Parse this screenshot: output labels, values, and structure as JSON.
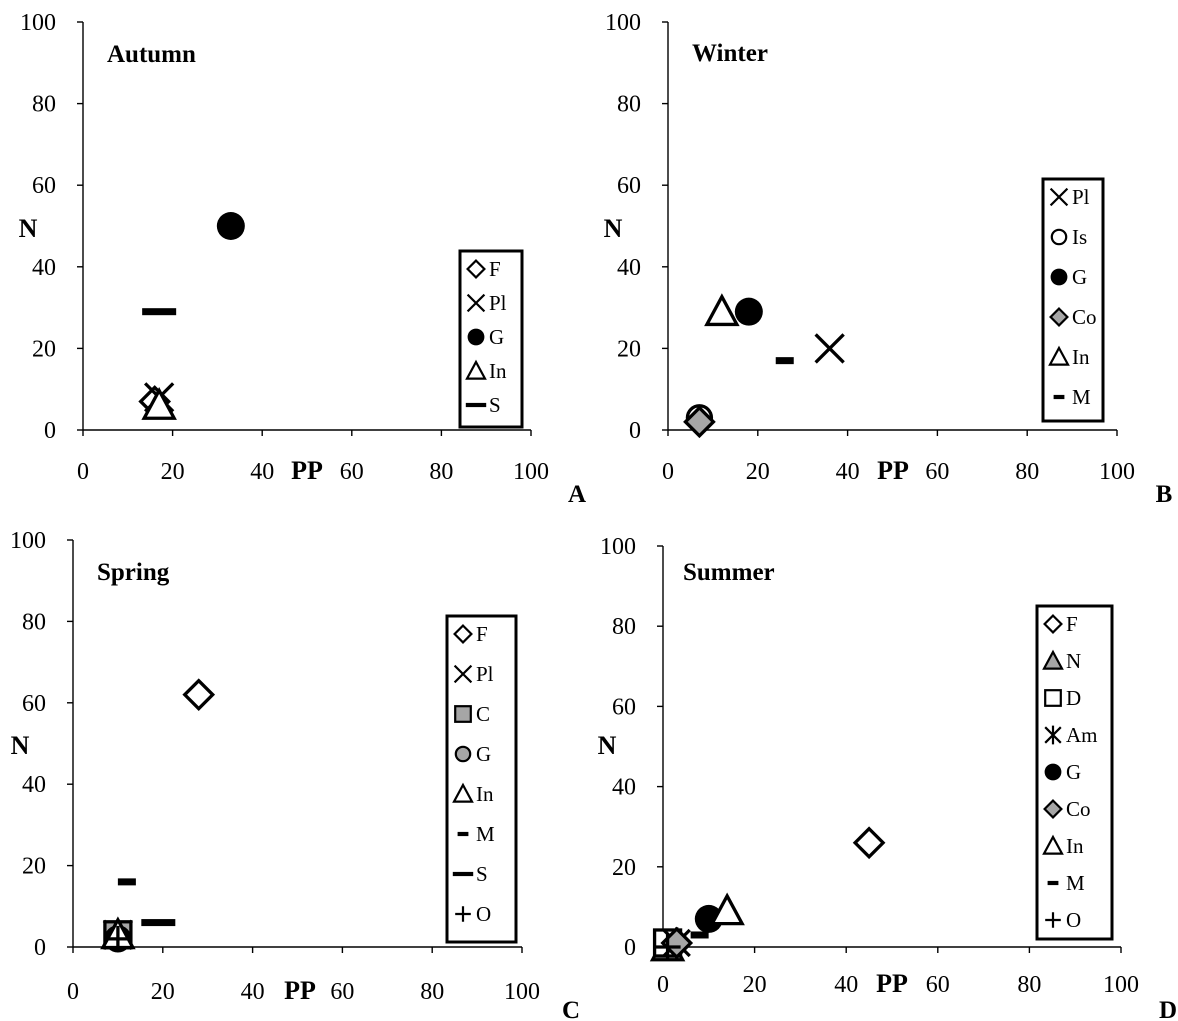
{
  "chart_data": [
    {
      "panel_id": "A",
      "type": "scatter",
      "title": "Autumn",
      "xlabel": "PP",
      "ylabel": "N",
      "xlim": [
        0,
        100
      ],
      "ylim": [
        0,
        100
      ],
      "xticks": [
        "0",
        "20",
        "40",
        "60",
        "80",
        "100"
      ],
      "yticks": [
        "0",
        "20",
        "40",
        "60",
        "80",
        "100"
      ],
      "grid": false,
      "legend_position": "lower-right",
      "series": [
        {
          "name": "F",
          "marker": "diamond-open",
          "color": "#000000",
          "x": 16,
          "y": 7
        },
        {
          "name": "Pl",
          "marker": "x",
          "color": "#000000",
          "x": 17,
          "y": 8
        },
        {
          "name": "G",
          "marker": "circle-filled",
          "color": "#000000",
          "x": 33,
          "y": 50
        },
        {
          "name": "In",
          "marker": "triangle-open",
          "color": "#000000",
          "x": 17,
          "y": 6
        },
        {
          "name": "S",
          "marker": "dash-long",
          "color": "#000000",
          "x": 17,
          "y": 29
        }
      ]
    },
    {
      "panel_id": "B",
      "type": "scatter",
      "title": "Winter",
      "xlabel": "PP",
      "ylabel": "N",
      "xlim": [
        0,
        100
      ],
      "ylim": [
        0,
        100
      ],
      "xticks": [
        "0",
        "20",
        "40",
        "60",
        "80",
        "100"
      ],
      "yticks": [
        "0",
        "20",
        "40",
        "60",
        "80",
        "100"
      ],
      "grid": false,
      "legend_position": "right",
      "series": [
        {
          "name": "Pl",
          "marker": "x",
          "color": "#000000",
          "x": 36,
          "y": 20
        },
        {
          "name": "Is",
          "marker": "circle-open",
          "color": "#000000",
          "x": 7,
          "y": 3
        },
        {
          "name": "G",
          "marker": "circle-filled",
          "color": "#000000",
          "x": 18,
          "y": 29
        },
        {
          "name": "Co",
          "marker": "diamond-gray",
          "color": "#999999",
          "x": 7,
          "y": 2
        },
        {
          "name": "In",
          "marker": "triangle-open",
          "color": "#000000",
          "x": 12,
          "y": 29
        },
        {
          "name": "M",
          "marker": "dash-short",
          "color": "#000000",
          "x": 26,
          "y": 17
        }
      ]
    },
    {
      "panel_id": "C",
      "type": "scatter",
      "title": "Spring",
      "xlabel": "PP",
      "ylabel": "N",
      "xlim": [
        0,
        100
      ],
      "ylim": [
        0,
        100
      ],
      "xticks": [
        "0",
        "20",
        "40",
        "60",
        "80",
        "100"
      ],
      "yticks": [
        "0",
        "20",
        "40",
        "60",
        "80",
        "100"
      ],
      "grid": false,
      "legend_position": "right",
      "series": [
        {
          "name": "F",
          "marker": "diamond-open",
          "color": "#000000",
          "x": 28,
          "y": 62
        },
        {
          "name": "Pl",
          "marker": "x",
          "color": "#000000",
          "x": 10,
          "y": 3
        },
        {
          "name": "C",
          "marker": "square-gray",
          "color": "#999999",
          "x": 10,
          "y": 3
        },
        {
          "name": "G",
          "marker": "circle-gray",
          "color": "#999999",
          "x": 10,
          "y": 2
        },
        {
          "name": "In",
          "marker": "triangle-open",
          "color": "#000000",
          "x": 10,
          "y": 3
        },
        {
          "name": "M",
          "marker": "dash-short",
          "color": "#000000",
          "x": 12,
          "y": 16
        },
        {
          "name": "S",
          "marker": "dash-long",
          "color": "#000000",
          "x": 19,
          "y": 6
        },
        {
          "name": "O",
          "marker": "plus",
          "color": "#000000",
          "x": 10,
          "y": 2
        }
      ]
    },
    {
      "panel_id": "D",
      "type": "scatter",
      "title": "Summer",
      "xlabel": "PP",
      "ylabel": "N",
      "xlim": [
        0,
        100
      ],
      "ylim": [
        0,
        100
      ],
      "xticks": [
        "0",
        "20",
        "40",
        "60",
        "80",
        "100"
      ],
      "yticks": [
        "0",
        "20",
        "40",
        "60",
        "80",
        "100"
      ],
      "grid": false,
      "legend_position": "right",
      "series": [
        {
          "name": "F",
          "marker": "diamond-open",
          "color": "#000000",
          "x": 45,
          "y": 26
        },
        {
          "name": "N",
          "marker": "triangle-gray",
          "color": "#999999",
          "x": 1,
          "y": 0
        },
        {
          "name": "D",
          "marker": "square-open",
          "color": "#000000",
          "x": 1,
          "y": 1
        },
        {
          "name": "Am",
          "marker": "asterisk",
          "color": "#000000",
          "x": 3,
          "y": 1
        },
        {
          "name": "G",
          "marker": "circle-filled",
          "color": "#000000",
          "x": 10,
          "y": 7
        },
        {
          "name": "Co",
          "marker": "diamond-gray",
          "color": "#999999",
          "x": 3,
          "y": 1
        },
        {
          "name": "In",
          "marker": "triangle-open",
          "color": "#000000",
          "x": 14,
          "y": 9
        },
        {
          "name": "M",
          "marker": "dash-short",
          "color": "#000000",
          "x": 8,
          "y": 3
        },
        {
          "name": "O",
          "marker": "plus",
          "color": "#000000",
          "x": 1,
          "y": 0
        }
      ]
    }
  ]
}
